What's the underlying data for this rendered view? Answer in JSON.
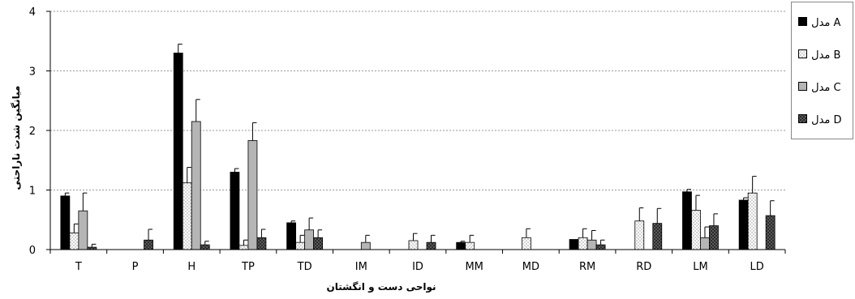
{
  "chart_data": {
    "type": "bar",
    "xlabel": "نواحی دست و انگشتان",
    "ylabel": "میانگین شدت ناراحتی",
    "ylim": [
      0,
      4
    ],
    "yticks": [
      "0",
      "1",
      "2",
      "3",
      "4"
    ],
    "grid": true,
    "legend_position": "right",
    "categories": [
      "T",
      "P",
      "H",
      "TP",
      "TD",
      "IM",
      "ID",
      "MM",
      "MD",
      "RM",
      "RD",
      "LM",
      "LD"
    ],
    "series": [
      {
        "name": "مدل A",
        "fill": "solid-black",
        "values": [
          0.9,
          0,
          3.3,
          1.3,
          0.45,
          0,
          0,
          0.12,
          0,
          0.17,
          0,
          0.97,
          0.83
        ],
        "errors": [
          0.05,
          0,
          0.15,
          0.06,
          0.03,
          0,
          0,
          0.02,
          0,
          0,
          0,
          0.04,
          0.04
        ]
      },
      {
        "name": "مدل B",
        "fill": "dotted-white",
        "values": [
          0.28,
          0,
          1.12,
          0.07,
          0.12,
          0,
          0.15,
          0.12,
          0.2,
          0.2,
          0.48,
          0.66,
          0.95
        ],
        "errors": [
          0.15,
          0,
          0.26,
          0.09,
          0.12,
          0,
          0.12,
          0.12,
          0.15,
          0.15,
          0.22,
          0.25,
          0.28
        ]
      },
      {
        "name": "مدل C",
        "fill": "light-gray",
        "values": [
          0.65,
          0,
          2.15,
          1.83,
          0.33,
          0.12,
          0,
          0,
          0,
          0.16,
          0,
          0.2,
          0
        ],
        "errors": [
          0.3,
          0,
          0.37,
          0.3,
          0.2,
          0.12,
          0,
          0,
          0,
          0.16,
          0,
          0.18,
          0
        ]
      },
      {
        "name": "مدل D",
        "fill": "dark-checkered",
        "values": [
          0.04,
          0.16,
          0.08,
          0.2,
          0.2,
          0,
          0.12,
          0,
          0,
          0.08,
          0.44,
          0.4,
          0.57
        ],
        "errors": [
          0.05,
          0.18,
          0.06,
          0.14,
          0.13,
          0,
          0.12,
          0,
          0,
          0.08,
          0.25,
          0.2,
          0.25
        ]
      }
    ],
    "colors": {
      "A": "#000000",
      "B": "#ffffff",
      "C": "#b5b5b5",
      "D": "#555555",
      "grid": "#999999"
    }
  }
}
